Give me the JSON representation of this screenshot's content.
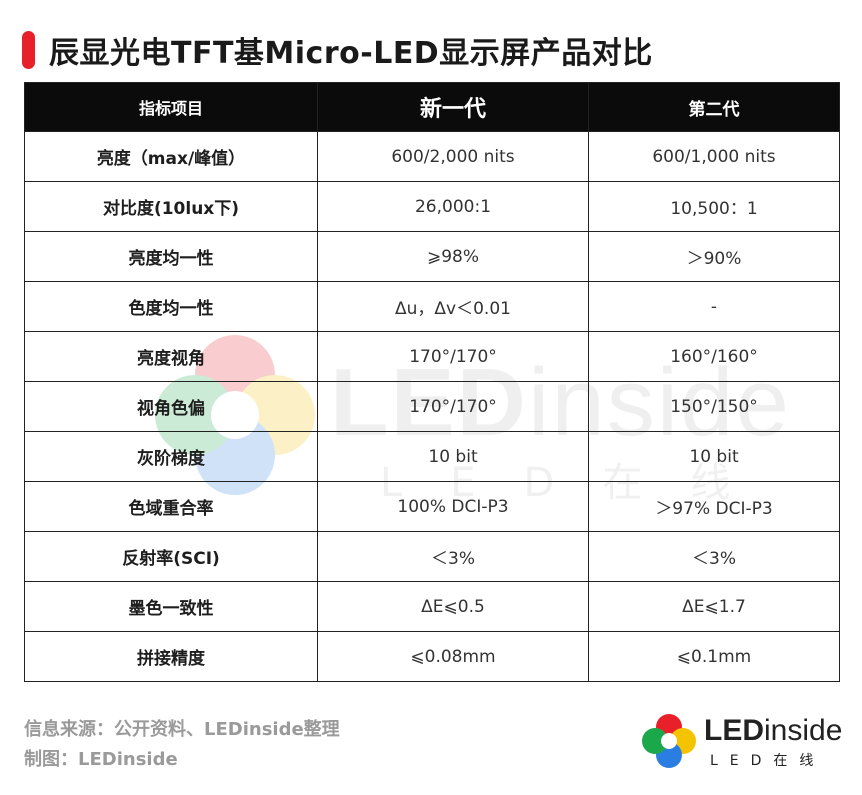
{
  "title": "辰显光电TFT基Micro-LED显示屏产品对比",
  "colors": {
    "accent": "#e8202a",
    "header_bg": "#0b0b0b",
    "header_fg": "#ffffff"
  },
  "table": {
    "headers": [
      "指标项目",
      "新一代",
      "第二代"
    ],
    "rows": [
      {
        "label": "亮度（max/峰值）",
        "new": "600/2,000 nits",
        "second": "600/1,000 nits"
      },
      {
        "label": "对比度(10lux下)",
        "new": "26,000:1",
        "second": "10,500：1"
      },
      {
        "label": "亮度均一性",
        "new": "⩾98%",
        "second": "＞90%"
      },
      {
        "label": "色度均一性",
        "new": "Δu，Δv＜0.01",
        "second": "-"
      },
      {
        "label": "亮度视角",
        "new": "170°/170°",
        "second": "160°/160°"
      },
      {
        "label": "视角色偏",
        "new": "170°/170°",
        "second": "150°/150°"
      },
      {
        "label": "灰阶梯度",
        "new": "10 bit",
        "second": "10 bit"
      },
      {
        "label": "色域重合率",
        "new": "100% DCI-P3",
        "second": "＞97% DCI-P3"
      },
      {
        "label": "反射率(SCI)",
        "new": "＜3%",
        "second": "＜3%"
      },
      {
        "label": "墨色一致性",
        "new": "ΔE⩽0.5",
        "second": "ΔE⩽1.7"
      },
      {
        "label": "拼接精度",
        "new": "⩽0.08mm",
        "second": "⩽0.1mm"
      }
    ]
  },
  "watermark": {
    "brand_bold": "LED",
    "brand_thin": "inside",
    "sub": "LED在线"
  },
  "footer": {
    "source": "信息来源：公开资料、LEDinside整理",
    "credit": "制图：LEDinside"
  },
  "logo": {
    "brand_bold": "LED",
    "brand_thin": "inside",
    "sub": "LED在线",
    "icon": "ledinside-flower-icon"
  }
}
